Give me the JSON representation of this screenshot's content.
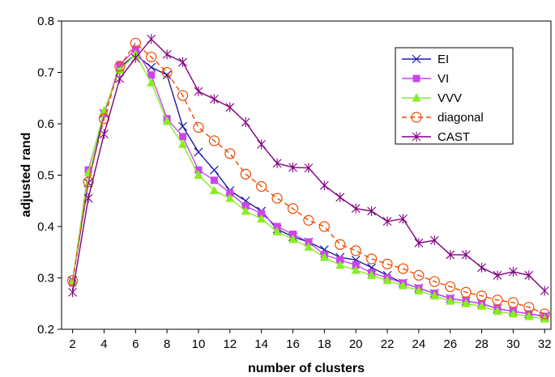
{
  "chart_data": {
    "type": "line",
    "title": "",
    "xlabel": "number of clusters",
    "ylabel": "adjusted rand",
    "xlim": [
      1.3,
      32.4
    ],
    "ylim": [
      0.2,
      0.8
    ],
    "x_ticks": [
      2,
      4,
      6,
      8,
      10,
      12,
      14,
      16,
      18,
      20,
      22,
      24,
      26,
      28,
      30,
      32
    ],
    "y_ticks": [
      0.2,
      0.3,
      0.4,
      0.5,
      0.6,
      0.7,
      0.8
    ],
    "y_tick_labels": [
      "0.2",
      "0.3",
      "0.4",
      "0.5",
      "0.6",
      "0.7",
      "0.8"
    ],
    "grid": false,
    "legend_position": "top-right",
    "x": [
      2,
      3,
      4,
      5,
      6,
      7,
      8,
      9,
      10,
      11,
      12,
      13,
      14,
      15,
      16,
      17,
      18,
      19,
      20,
      21,
      22,
      23,
      24,
      25,
      26,
      27,
      28,
      29,
      30,
      31,
      32
    ],
    "series": [
      {
        "name": "EI",
        "color": "#1c1ca8",
        "marker": "x",
        "dashed": false,
        "values": [
          0.295,
          0.485,
          0.62,
          0.71,
          0.735,
          0.71,
          0.695,
          0.595,
          0.545,
          0.51,
          0.47,
          0.45,
          0.43,
          0.395,
          0.38,
          0.37,
          0.355,
          0.34,
          0.335,
          0.32,
          0.305,
          0.29,
          0.28,
          0.27,
          0.26,
          0.255,
          0.25,
          0.24,
          0.235,
          0.23,
          0.225
        ]
      },
      {
        "name": "VI",
        "color": "#cc44ee",
        "marker": "square",
        "dashed": false,
        "values": [
          0.29,
          0.51,
          0.62,
          0.715,
          0.745,
          0.695,
          0.61,
          0.575,
          0.51,
          0.49,
          0.465,
          0.44,
          0.425,
          0.4,
          0.385,
          0.37,
          0.345,
          0.335,
          0.325,
          0.31,
          0.3,
          0.29,
          0.28,
          0.27,
          0.26,
          0.255,
          0.25,
          0.24,
          0.235,
          0.23,
          0.225
        ]
      },
      {
        "name": "VVV",
        "color": "#88ee22",
        "marker": "triangle",
        "dashed": false,
        "values": [
          0.293,
          0.505,
          0.625,
          0.705,
          0.735,
          0.68,
          0.605,
          0.56,
          0.5,
          0.47,
          0.455,
          0.43,
          0.415,
          0.39,
          0.375,
          0.36,
          0.34,
          0.325,
          0.315,
          0.305,
          0.295,
          0.285,
          0.275,
          0.265,
          0.255,
          0.25,
          0.245,
          0.235,
          0.23,
          0.225,
          0.22
        ]
      },
      {
        "name": "diagonal",
        "color": "#ee4a00",
        "marker": "circle",
        "dashed": true,
        "values": [
          0.295,
          0.487,
          0.61,
          0.712,
          0.757,
          0.73,
          0.7,
          0.655,
          0.593,
          0.567,
          0.542,
          0.502,
          0.478,
          0.455,
          0.435,
          0.412,
          0.4,
          0.365,
          0.353,
          0.337,
          0.327,
          0.318,
          0.305,
          0.293,
          0.283,
          0.272,
          0.265,
          0.257,
          0.252,
          0.243,
          0.23
        ]
      },
      {
        "name": "CAST",
        "color": "#800080",
        "marker": "star",
        "dashed": false,
        "values": [
          0.272,
          0.455,
          0.58,
          0.688,
          0.728,
          0.765,
          0.735,
          0.72,
          0.663,
          0.648,
          0.632,
          0.603,
          0.56,
          0.523,
          0.515,
          0.514,
          0.48,
          0.457,
          0.435,
          0.43,
          0.41,
          0.415,
          0.368,
          0.373,
          0.345,
          0.345,
          0.32,
          0.305,
          0.312,
          0.305,
          0.275
        ]
      }
    ]
  }
}
